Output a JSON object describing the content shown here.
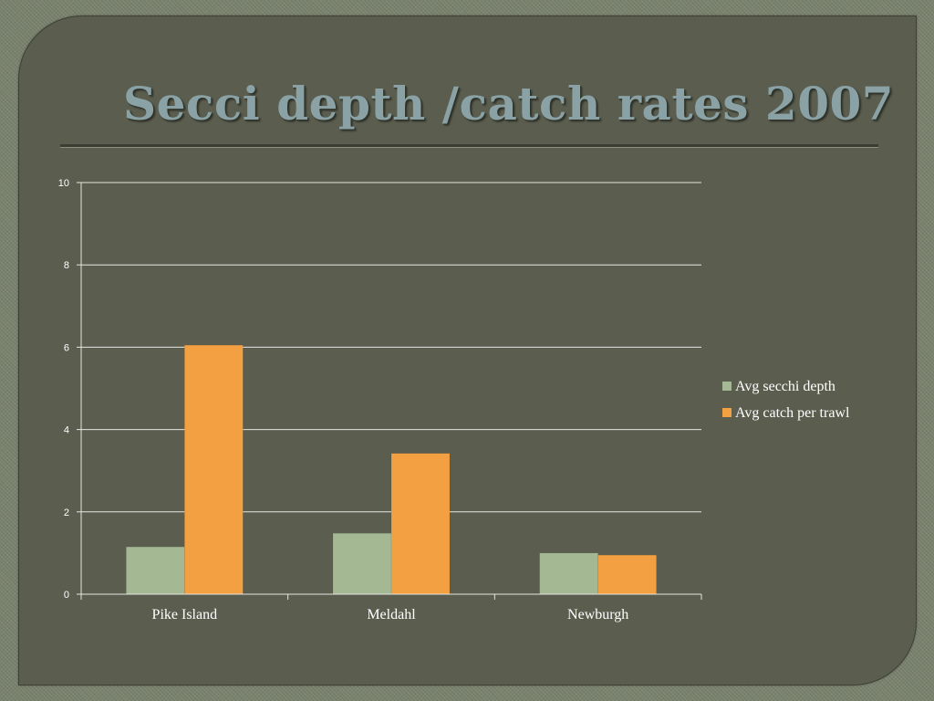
{
  "slide": {
    "title": "Secci depth /catch rates 2007"
  },
  "chart_data": {
    "type": "bar",
    "title": "",
    "xlabel": "",
    "ylabel": "",
    "categories": [
      "Pike Island",
      "Meldahl",
      "Newburgh"
    ],
    "series": [
      {
        "name": "Avg secchi depth",
        "color": "#a5b894",
        "values": [
          1.15,
          1.48,
          1.0
        ]
      },
      {
        "name": "Avg catch per trawl",
        "color": "#f2a042",
        "values": [
          6.05,
          3.42,
          0.95
        ]
      }
    ],
    "ylim": [
      0,
      10
    ],
    "yticks": [
      0,
      2,
      4,
      6,
      8,
      10
    ],
    "grid": true,
    "legend": "right"
  }
}
